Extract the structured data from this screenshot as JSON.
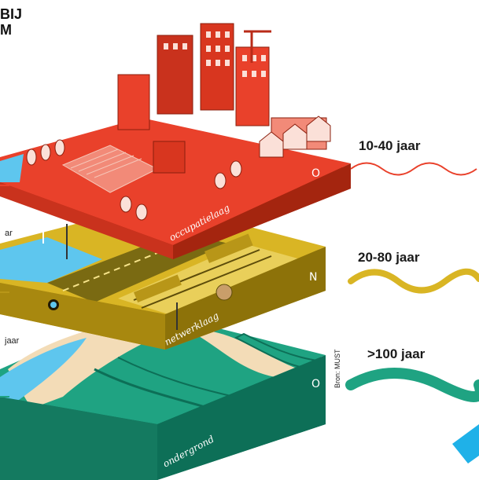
{
  "title": {
    "line1": "BIJ",
    "line2": "M"
  },
  "layers": [
    {
      "name": "occupatielaag",
      "duration": "10-40 jaar",
      "color": "#e9412b",
      "wave_color": "#e9412b"
    },
    {
      "name": "netwerklaag",
      "duration": "20-80 jaar",
      "color": "#d9b524",
      "wave_color": "#d9b524"
    },
    {
      "name": "ondergrond",
      "duration": ">100 jaar",
      "color": "#1fa382",
      "wave_color": "#1fa382"
    }
  ],
  "left_labels": {
    "upper": "ar",
    "lower": "jaar"
  },
  "source": "Bron: MUST",
  "colors": {
    "water": "#5ec6ee",
    "sand": "#f3dcb7",
    "dark_green": "#0d6f57",
    "accent_blue": "#1fb1e8"
  }
}
